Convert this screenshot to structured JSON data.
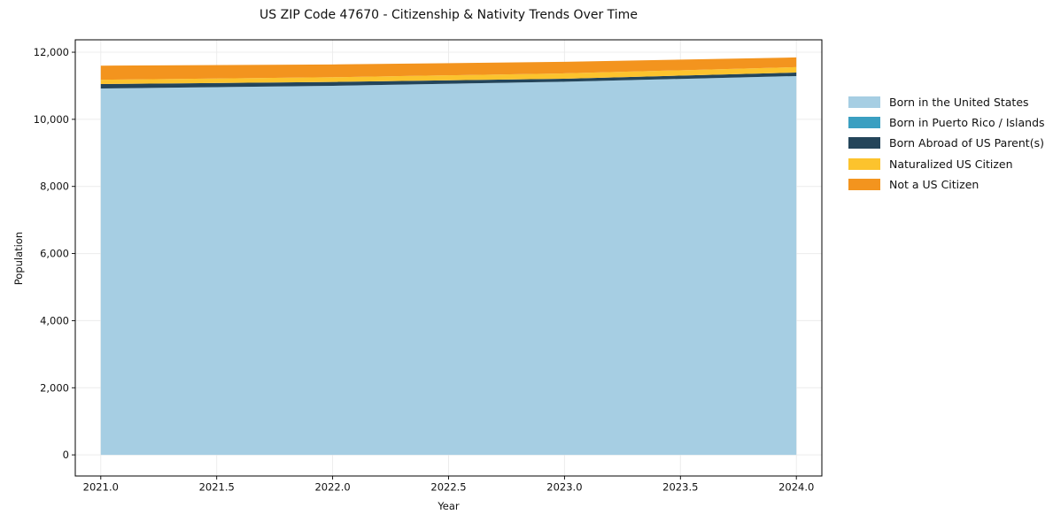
{
  "figure": {
    "title": "US ZIP Code 47670 - Citizenship & Nativity Trends Over Time",
    "background_color": "#ffffff",
    "grid_color": "#ececec",
    "spine_color": "#000000",
    "text_color": "#111111"
  },
  "chart_data": {
    "type": "area",
    "stacked": true,
    "title": "US ZIP Code 47670 - Citizenship & Nativity Trends Over Time",
    "xlabel": "Year",
    "ylabel": "Population",
    "x": [
      2021,
      2022,
      2023,
      2024
    ],
    "series": [
      {
        "name": "Born in the United States",
        "color": "#a6cee3",
        "values": [
          10920,
          11000,
          11120,
          11290
        ]
      },
      {
        "name": "Born in Puerto Rico / Islands",
        "color": "#3a9fc1",
        "values": [
          0,
          0,
          0,
          0
        ]
      },
      {
        "name": "Born Abroad of US Parent(s)",
        "color": "#24455a",
        "values": [
          130,
          115,
          90,
          105
        ]
      },
      {
        "name": "Naturalized US Citizen",
        "color": "#fcc32d",
        "values": [
          130,
          140,
          160,
          160
        ]
      },
      {
        "name": "Not a US Citizen",
        "color": "#f3941e",
        "values": [
          420,
          380,
          345,
          290
        ]
      }
    ],
    "xlim": [
      2020.89,
      2024.11
    ],
    "ylim": [
      -630,
      12370
    ],
    "xticks": [
      2021.0,
      2021.5,
      2022.0,
      2022.5,
      2023.0,
      2023.5,
      2024.0
    ],
    "xtick_labels": [
      "2021.0",
      "2021.5",
      "2022.0",
      "2022.5",
      "2023.0",
      "2023.5",
      "2024.0"
    ],
    "yticks": [
      0,
      2000,
      4000,
      6000,
      8000,
      10000,
      12000
    ],
    "ytick_labels": [
      "0",
      "2,000",
      "4,000",
      "6,000",
      "8,000",
      "10,000",
      "12,000"
    ],
    "grid": true,
    "legend_position": "right-outside"
  }
}
